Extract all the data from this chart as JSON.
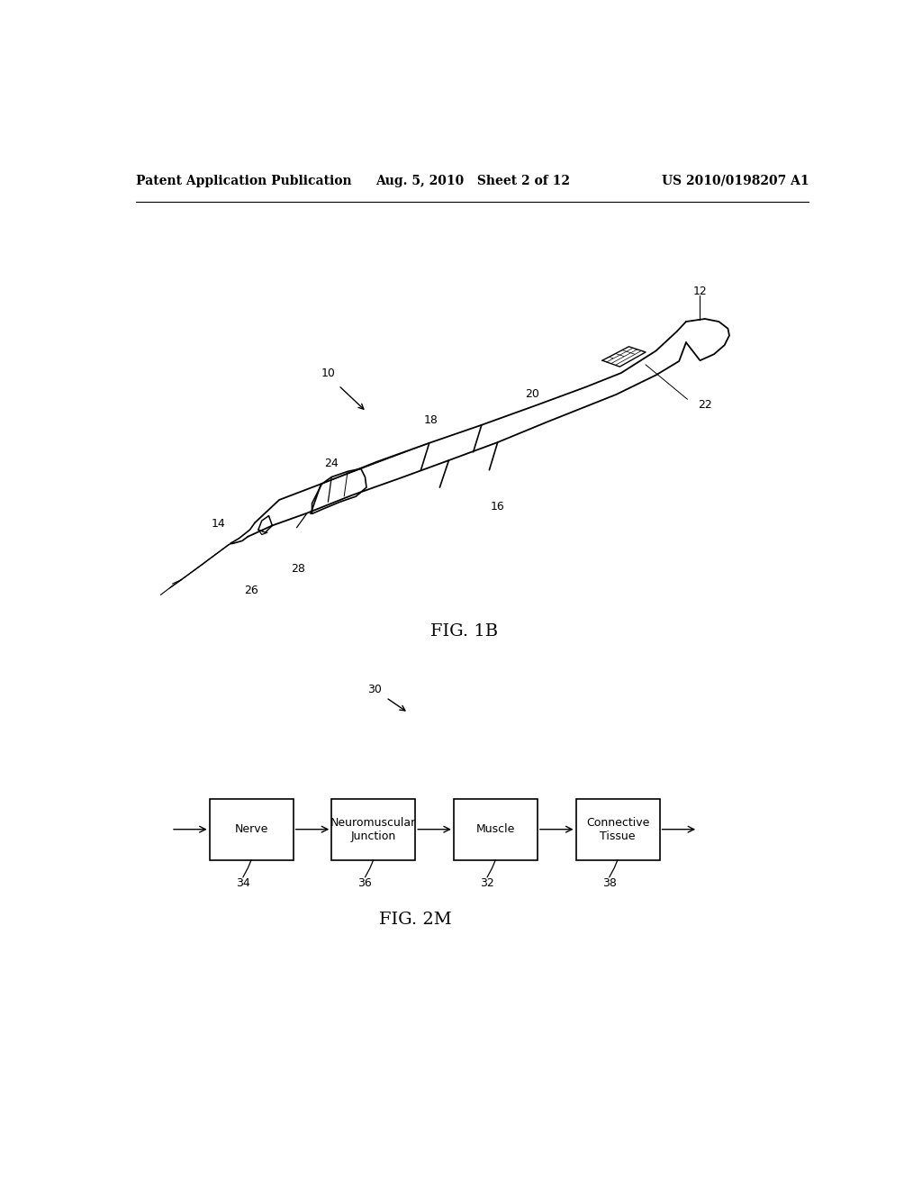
{
  "bg_color": "#ffffff",
  "header_left": "Patent Application Publication",
  "header_mid": "Aug. 5, 2010   Sheet 2 of 12",
  "header_right": "US 2010/0198207 A1",
  "fig1b_label": "FIG. 1B",
  "fig2m_label": "FIG. 2M",
  "label_10": "10",
  "label_12": "12",
  "label_14": "14",
  "label_16": "16",
  "label_18": "18",
  "label_20": "20",
  "label_22": "22",
  "label_24": "24",
  "label_26": "26",
  "label_28": "28",
  "label_30": "30",
  "label_32": "32",
  "label_34": "34",
  "label_36": "36",
  "label_38": "38",
  "box_labels": [
    "Nerve",
    "Neuromuscular\nJunction",
    "Muscle",
    "Connective\nTissue"
  ],
  "box_numbers": [
    "34",
    "36",
    "32",
    "38"
  ],
  "line_color": "#000000",
  "text_color": "#000000",
  "font_size_header": 10,
  "font_size_label": 9,
  "font_size_fig": 14,
  "font_size_box": 9
}
